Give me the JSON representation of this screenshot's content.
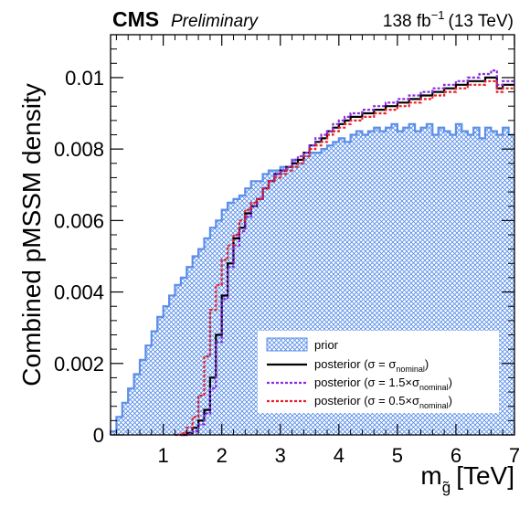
{
  "header": {
    "experiment": "CMS",
    "status": "Preliminary",
    "lumi_value": "138 fb",
    "lumi_exp": "−1",
    "energy": "(13 TeV)"
  },
  "chart_data": {
    "type": "histogram",
    "xlabel": {
      "main": "m",
      "sub": "g̃",
      "unit": "[TeV]"
    },
    "ylabel": "Combined pMSSM density",
    "xlim": [
      0.1,
      7.0
    ],
    "ylim": [
      0,
      0.0112
    ],
    "x_ticks": [
      "1",
      "2",
      "3",
      "4",
      "5",
      "6",
      "7"
    ],
    "y_ticks": [
      "0",
      "0.002",
      "0.004",
      "0.006",
      "0.008",
      "0.01"
    ],
    "legend": [
      {
        "key": "prior",
        "text": "prior",
        "style": "hatched",
        "color": "#5b8fe8"
      },
      {
        "key": "post_nom",
        "parts": [
          "posterior (σ = σ",
          "nominal",
          ")"
        ],
        "style": "solid",
        "color": "#000000"
      },
      {
        "key": "post_15",
        "parts": [
          "posterior (σ = 1.5×σ",
          "nominal",
          ")"
        ],
        "style": "dashed",
        "color": "#8a2be2"
      },
      {
        "key": "post_05",
        "parts": [
          "posterior (σ = 0.5×σ",
          "nominal",
          ")"
        ],
        "style": "dashed",
        "color": "#e8202a"
      }
    ],
    "series": [
      {
        "name": "prior",
        "color": "#5b8fe8",
        "points": [
          [
            0.1,
            0.0001
          ],
          [
            0.2,
            0.0005
          ],
          [
            0.3,
            0.0009
          ],
          [
            0.4,
            0.0013
          ],
          [
            0.5,
            0.0017
          ],
          [
            0.6,
            0.0021
          ],
          [
            0.7,
            0.0025
          ],
          [
            0.8,
            0.0029
          ],
          [
            0.9,
            0.0033
          ],
          [
            1.0,
            0.0036
          ],
          [
            1.1,
            0.0039
          ],
          [
            1.2,
            0.0042
          ],
          [
            1.3,
            0.0044
          ],
          [
            1.4,
            0.0047
          ],
          [
            1.5,
            0.005
          ],
          [
            1.6,
            0.0052
          ],
          [
            1.7,
            0.0055
          ],
          [
            1.8,
            0.0058
          ],
          [
            1.9,
            0.006
          ],
          [
            2.0,
            0.0063
          ],
          [
            2.1,
            0.0065
          ],
          [
            2.2,
            0.0066
          ],
          [
            2.3,
            0.0067
          ],
          [
            2.4,
            0.0069
          ],
          [
            2.5,
            0.0071
          ],
          [
            2.6,
            0.0071
          ],
          [
            2.7,
            0.0073
          ],
          [
            2.8,
            0.0074
          ],
          [
            2.9,
            0.0074
          ],
          [
            3.0,
            0.0075
          ],
          [
            3.1,
            0.0075
          ],
          [
            3.2,
            0.0077
          ],
          [
            3.3,
            0.0076
          ],
          [
            3.4,
            0.0078
          ],
          [
            3.5,
            0.0079
          ],
          [
            3.6,
            0.0079
          ],
          [
            3.7,
            0.008
          ],
          [
            3.8,
            0.0081
          ],
          [
            3.9,
            0.0082
          ],
          [
            4.0,
            0.0083
          ],
          [
            4.1,
            0.0082
          ],
          [
            4.2,
            0.0084
          ],
          [
            4.3,
            0.0085
          ],
          [
            4.4,
            0.0084
          ],
          [
            4.5,
            0.0085
          ],
          [
            4.6,
            0.0086
          ],
          [
            4.7,
            0.0085
          ],
          [
            4.8,
            0.0086
          ],
          [
            4.9,
            0.0087
          ],
          [
            5.0,
            0.0085
          ],
          [
            5.1,
            0.0086
          ],
          [
            5.2,
            0.0087
          ],
          [
            5.3,
            0.0085
          ],
          [
            5.4,
            0.0086
          ],
          [
            5.5,
            0.0087
          ],
          [
            5.6,
            0.0084
          ],
          [
            5.7,
            0.0086
          ],
          [
            5.8,
            0.0085
          ],
          [
            5.9,
            0.0084
          ],
          [
            6.0,
            0.0087
          ],
          [
            6.1,
            0.0085
          ],
          [
            6.2,
            0.0084
          ],
          [
            6.3,
            0.0086
          ],
          [
            6.4,
            0.0083
          ],
          [
            6.5,
            0.0086
          ],
          [
            6.6,
            0.0085
          ],
          [
            6.7,
            0.0084
          ],
          [
            6.8,
            0.0086
          ],
          [
            6.9,
            0.0084
          ]
        ]
      },
      {
        "name": "posterior (σ = σnominal)",
        "color": "#000000",
        "points": [
          [
            1.3,
            0.0
          ],
          [
            1.4,
            5e-05
          ],
          [
            1.5,
            0.0002
          ],
          [
            1.6,
            0.0004
          ],
          [
            1.7,
            0.0007
          ],
          [
            1.8,
            0.0016
          ],
          [
            1.9,
            0.0028
          ],
          [
            2.0,
            0.0039
          ],
          [
            2.1,
            0.0048
          ],
          [
            2.2,
            0.0055
          ],
          [
            2.3,
            0.0058
          ],
          [
            2.4,
            0.0062
          ],
          [
            2.5,
            0.0064
          ],
          [
            2.6,
            0.0066
          ],
          [
            2.7,
            0.0069
          ],
          [
            2.8,
            0.0071
          ],
          [
            2.9,
            0.0073
          ],
          [
            3.0,
            0.0074
          ],
          [
            3.1,
            0.0075
          ],
          [
            3.2,
            0.0076
          ],
          [
            3.3,
            0.0077
          ],
          [
            3.4,
            0.0079
          ],
          [
            3.5,
            0.0081
          ],
          [
            3.6,
            0.0082
          ],
          [
            3.7,
            0.0083
          ],
          [
            3.8,
            0.0085
          ],
          [
            3.9,
            0.0086
          ],
          [
            4.0,
            0.0087
          ],
          [
            4.1,
            0.0088
          ],
          [
            4.2,
            0.0089
          ],
          [
            4.3,
            0.0089
          ],
          [
            4.4,
            0.009
          ],
          [
            4.5,
            0.009
          ],
          [
            4.6,
            0.0091
          ],
          [
            4.7,
            0.0091
          ],
          [
            4.8,
            0.0092
          ],
          [
            4.9,
            0.0092
          ],
          [
            5.0,
            0.0093
          ],
          [
            5.1,
            0.0093
          ],
          [
            5.2,
            0.0094
          ],
          [
            5.3,
            0.0094
          ],
          [
            5.4,
            0.0095
          ],
          [
            5.5,
            0.0095
          ],
          [
            5.6,
            0.0096
          ],
          [
            5.7,
            0.0096
          ],
          [
            5.8,
            0.0097
          ],
          [
            5.9,
            0.0097
          ],
          [
            6.0,
            0.0098
          ],
          [
            6.1,
            0.0098
          ],
          [
            6.2,
            0.0099
          ],
          [
            6.3,
            0.0099
          ],
          [
            6.4,
            0.0099
          ],
          [
            6.5,
            0.01
          ],
          [
            6.6,
            0.01
          ],
          [
            6.7,
            0.0097
          ],
          [
            6.8,
            0.0098
          ],
          [
            6.9,
            0.0098
          ]
        ]
      },
      {
        "name": "posterior (σ = 1.5×σnominal)",
        "color": "#8a2be2",
        "points": [
          [
            1.3,
            0.0
          ],
          [
            1.4,
            3e-05
          ],
          [
            1.5,
            0.0001
          ],
          [
            1.6,
            0.0003
          ],
          [
            1.7,
            0.0006
          ],
          [
            1.8,
            0.0013
          ],
          [
            1.9,
            0.0026
          ],
          [
            2.0,
            0.0038
          ],
          [
            2.1,
            0.0047
          ],
          [
            2.2,
            0.0053
          ],
          [
            2.3,
            0.0057
          ],
          [
            2.4,
            0.0061
          ],
          [
            2.5,
            0.0064
          ],
          [
            2.6,
            0.0066
          ],
          [
            2.7,
            0.0069
          ],
          [
            2.8,
            0.0071
          ],
          [
            2.9,
            0.0073
          ],
          [
            3.0,
            0.0074
          ],
          [
            3.1,
            0.0075
          ],
          [
            3.2,
            0.0077
          ],
          [
            3.3,
            0.0078
          ],
          [
            3.4,
            0.0079
          ],
          [
            3.5,
            0.0081
          ],
          [
            3.6,
            0.0083
          ],
          [
            3.7,
            0.0084
          ],
          [
            3.8,
            0.0085
          ],
          [
            3.9,
            0.0087
          ],
          [
            4.0,
            0.0088
          ],
          [
            4.1,
            0.0089
          ],
          [
            4.2,
            0.009
          ],
          [
            4.3,
            0.009
          ],
          [
            4.4,
            0.0091
          ],
          [
            4.5,
            0.0091
          ],
          [
            4.6,
            0.0092
          ],
          [
            4.7,
            0.0092
          ],
          [
            4.8,
            0.0093
          ],
          [
            4.9,
            0.0093
          ],
          [
            5.0,
            0.0094
          ],
          [
            5.1,
            0.0094
          ],
          [
            5.2,
            0.0095
          ],
          [
            5.3,
            0.0095
          ],
          [
            5.4,
            0.0096
          ],
          [
            5.5,
            0.0096
          ],
          [
            5.6,
            0.0097
          ],
          [
            5.7,
            0.0097
          ],
          [
            5.8,
            0.0098
          ],
          [
            5.9,
            0.0098
          ],
          [
            6.0,
            0.0099
          ],
          [
            6.1,
            0.0099
          ],
          [
            6.2,
            0.01
          ],
          [
            6.3,
            0.01
          ],
          [
            6.4,
            0.0101
          ],
          [
            6.5,
            0.0101
          ],
          [
            6.6,
            0.0102
          ],
          [
            6.7,
            0.0098
          ],
          [
            6.8,
            0.0099
          ],
          [
            6.9,
            0.0099
          ]
        ]
      },
      {
        "name": "posterior (σ = 0.5×σnominal)",
        "color": "#e8202a",
        "points": [
          [
            1.2,
            0.0
          ],
          [
            1.3,
            5e-05
          ],
          [
            1.4,
            0.0002
          ],
          [
            1.5,
            0.0005
          ],
          [
            1.6,
            0.0011
          ],
          [
            1.7,
            0.0022
          ],
          [
            1.8,
            0.0035
          ],
          [
            1.9,
            0.0042
          ],
          [
            2.0,
            0.0049
          ],
          [
            2.1,
            0.0053
          ],
          [
            2.2,
            0.0056
          ],
          [
            2.3,
            0.006
          ],
          [
            2.4,
            0.0063
          ],
          [
            2.5,
            0.0065
          ],
          [
            2.6,
            0.0066
          ],
          [
            2.7,
            0.0069
          ],
          [
            2.8,
            0.0071
          ],
          [
            2.9,
            0.0072
          ],
          [
            3.0,
            0.0073
          ],
          [
            3.1,
            0.0074
          ],
          [
            3.2,
            0.0075
          ],
          [
            3.3,
            0.0076
          ],
          [
            3.4,
            0.0078
          ],
          [
            3.5,
            0.008
          ],
          [
            3.6,
            0.0081
          ],
          [
            3.7,
            0.0082
          ],
          [
            3.8,
            0.0084
          ],
          [
            3.9,
            0.0085
          ],
          [
            4.0,
            0.0086
          ],
          [
            4.1,
            0.0087
          ],
          [
            4.2,
            0.0088
          ],
          [
            4.3,
            0.0088
          ],
          [
            4.4,
            0.0089
          ],
          [
            4.5,
            0.0089
          ],
          [
            4.6,
            0.009
          ],
          [
            4.7,
            0.009
          ],
          [
            4.8,
            0.0091
          ],
          [
            4.9,
            0.0091
          ],
          [
            5.0,
            0.0092
          ],
          [
            5.1,
            0.0092
          ],
          [
            5.2,
            0.0093
          ],
          [
            5.3,
            0.0093
          ],
          [
            5.4,
            0.0094
          ],
          [
            5.5,
            0.0094
          ],
          [
            5.6,
            0.0095
          ],
          [
            5.7,
            0.0095
          ],
          [
            5.8,
            0.0096
          ],
          [
            5.9,
            0.0096
          ],
          [
            6.0,
            0.0097
          ],
          [
            6.1,
            0.0097
          ],
          [
            6.2,
            0.0098
          ],
          [
            6.3,
            0.0098
          ],
          [
            6.4,
            0.0098
          ],
          [
            6.5,
            0.0099
          ],
          [
            6.6,
            0.0099
          ],
          [
            6.7,
            0.0096
          ],
          [
            6.8,
            0.0097
          ],
          [
            6.9,
            0.0097
          ]
        ]
      }
    ]
  }
}
